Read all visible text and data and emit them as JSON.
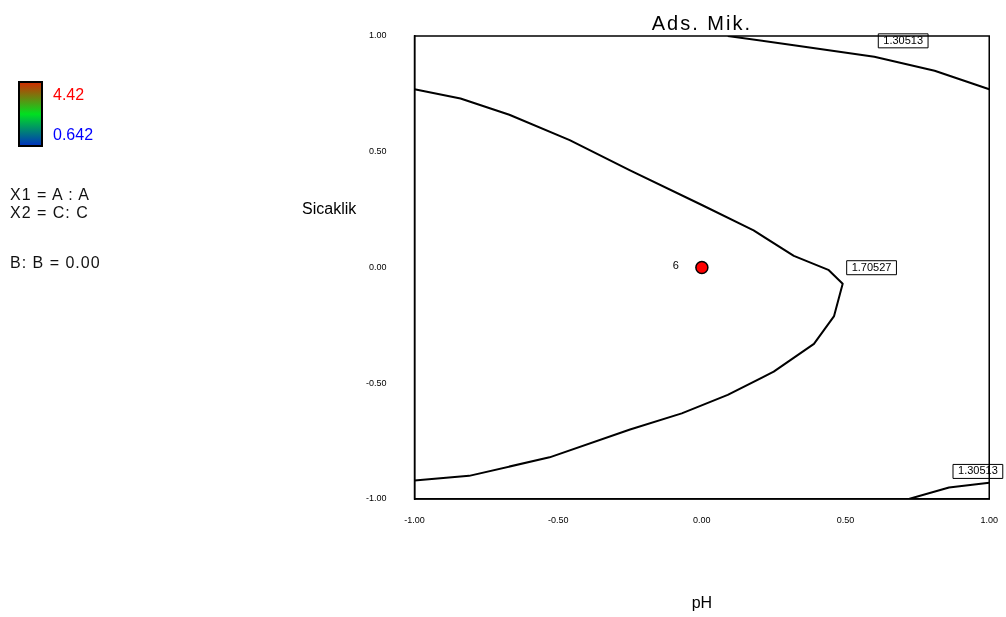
{
  "chart_data": {
    "type": "line",
    "title": "Ads. Mik.",
    "xlabel": "pH",
    "ylabel": "Sicaklik",
    "xlim": [
      -1,
      1
    ],
    "xticks": [
      {
        "value": -1,
        "label": "-1.00"
      },
      {
        "value": -0.5,
        "label": "-0.50"
      },
      {
        "value": 0,
        "label": "0.00"
      },
      {
        "value": 0.5,
        "label": "0.50"
      },
      {
        "value": 1,
        "label": "1.00"
      }
    ],
    "ylim": [
      -1,
      1
    ],
    "yticks": [
      {
        "value": -1,
        "label": "-1.00"
      },
      {
        "value": -0.5,
        "label": "-0.50"
      },
      {
        "value": 0,
        "label": "0.00"
      },
      {
        "value": 0.5,
        "label": "0.50"
      },
      {
        "value": 1,
        "label": "1.00"
      }
    ],
    "grid": false,
    "legend": false,
    "marker": "none",
    "line_style": "solid",
    "clim": [
      0.642,
      4.42
    ],
    "cticks": [
      0.642,
      4.42
    ],
    "series": [
      {
        "type": "line",
        "color": "#000000",
        "x": [
          -1,
          -0.84,
          -0.67,
          -0.46,
          -0.25,
          0,
          0.18,
          0.32,
          0.44,
          0.49,
          0.46,
          0.39,
          0.25,
          0.09,
          -0.07,
          -0.25,
          -0.53,
          -0.81,
          -1
        ],
        "values": [
          0.77,
          0.73,
          0.66,
          0.55,
          0.42,
          0.27,
          0.16,
          0.05,
          -0.01,
          -0.07,
          -0.21,
          -0.33,
          -0.45,
          -0.55,
          -0.63,
          -0.7,
          -0.82,
          -0.9,
          -0.92
        ]
      },
      {
        "type": "line",
        "color": "#000000",
        "x": [
          0.09,
          0.32,
          0.6,
          0.81,
          1
        ],
        "values": [
          1,
          0.96,
          0.91,
          0.85,
          0.77
        ]
      },
      {
        "type": "line",
        "color": "#000000",
        "x": [
          0.72,
          0.86,
          1
        ],
        "values": [
          -1,
          -0.95,
          -0.93
        ]
      },
      {
        "type": "scatter",
        "color": "#ff0000",
        "marker": "circle",
        "x": [
          0
        ],
        "values": [
          0
        ]
      }
    ],
    "annotations": [
      {
        "text": "1.30513",
        "x": 0.6,
        "y": 0.91
      },
      {
        "text": "1.70527",
        "x": 0.49,
        "y": -0.07
      },
      {
        "text": "1.30513",
        "x": 0.86,
        "y": -0.95
      },
      {
        "text": "6",
        "x": 0,
        "y": 0
      },
      "X1 = A : A",
      "X2 = C: C",
      "B: B = 0.00"
    ]
  }
}
